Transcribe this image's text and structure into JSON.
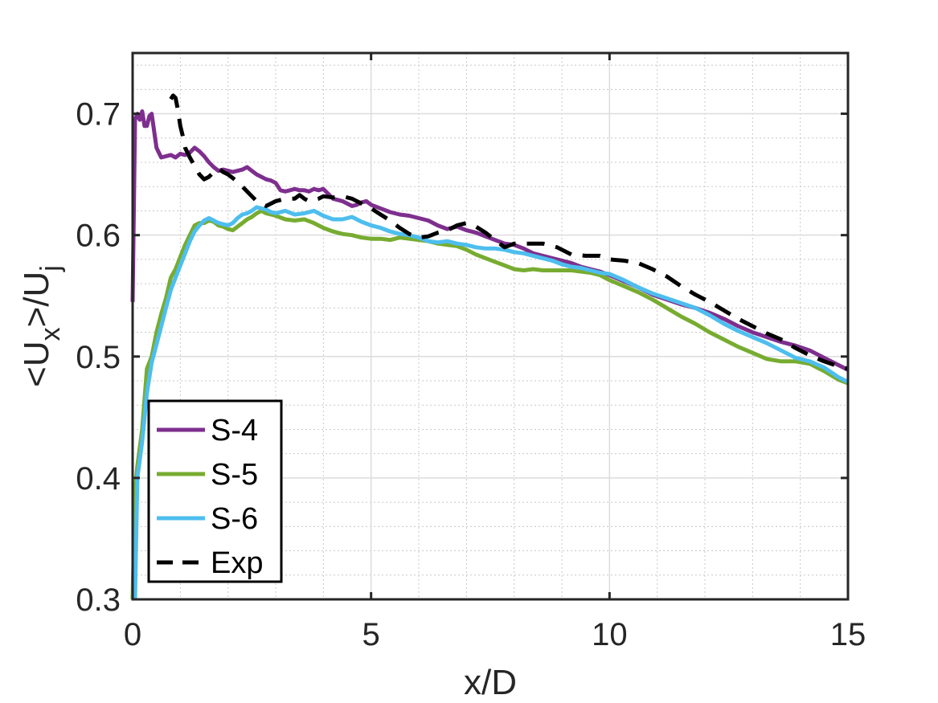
{
  "chart_data": {
    "type": "line",
    "xlabel": "x/D",
    "ylabel": {
      "base": "<U",
      "sub1": "x",
      "mid": ">/U",
      "sub2": "j"
    },
    "xlim": [
      0,
      15
    ],
    "ylim": [
      0.3,
      0.75
    ],
    "xticks": [
      0,
      5,
      10,
      15
    ],
    "yticks": [
      0.3,
      0.4,
      0.5,
      0.6,
      0.7
    ],
    "xtick_labels": [
      "0",
      "5",
      "10",
      "15"
    ],
    "ytick_labels": [
      "0.3",
      "0.4",
      "0.5",
      "0.6",
      "0.7"
    ],
    "grid": true,
    "minor_grid": true,
    "legend_position": "bottom-left",
    "series": [
      {
        "name": "S-4",
        "color": "#7E2F8E",
        "style": "solid",
        "x": [
          0,
          0.05,
          0.1,
          0.15,
          0.2,
          0.25,
          0.3,
          0.35,
          0.4,
          0.5,
          0.55,
          0.6,
          0.7,
          0.8,
          0.9,
          1.0,
          1.1,
          1.2,
          1.3,
          1.4,
          1.5,
          1.6,
          1.7,
          1.8,
          1.9,
          2.0,
          2.1,
          2.2,
          2.3,
          2.4,
          2.5,
          2.6,
          2.7,
          2.8,
          2.9,
          3.0,
          3.1,
          3.2,
          3.3,
          3.4,
          3.5,
          3.6,
          3.7,
          3.8,
          3.9,
          4.0,
          4.1,
          4.2,
          4.3,
          4.4,
          4.5,
          4.6,
          4.7,
          4.8,
          4.9,
          5.0,
          5.2,
          5.4,
          5.6,
          5.8,
          6.0,
          6.2,
          6.4,
          6.6,
          6.8,
          7.0,
          7.2,
          7.4,
          7.6,
          7.8,
          8.0,
          8.2,
          8.4,
          8.6,
          8.8,
          9.0,
          9.2,
          9.4,
          9.6,
          9.8,
          10.0,
          10.3,
          10.6,
          10.9,
          11.2,
          11.5,
          11.8,
          12.1,
          12.4,
          12.7,
          13.0,
          13.3,
          13.6,
          13.9,
          14.2,
          14.5,
          14.8,
          15.0
        ],
        "y": [
          0.545,
          0.695,
          0.7,
          0.695,
          0.702,
          0.69,
          0.69,
          0.698,
          0.7,
          0.672,
          0.668,
          0.664,
          0.665,
          0.666,
          0.664,
          0.667,
          0.666,
          0.668,
          0.672,
          0.669,
          0.665,
          0.66,
          0.656,
          0.653,
          0.654,
          0.653,
          0.652,
          0.653,
          0.654,
          0.656,
          0.653,
          0.65,
          0.648,
          0.646,
          0.645,
          0.643,
          0.637,
          0.636,
          0.637,
          0.638,
          0.637,
          0.637,
          0.636,
          0.638,
          0.637,
          0.638,
          0.634,
          0.63,
          0.629,
          0.628,
          0.626,
          0.624,
          0.625,
          0.627,
          0.628,
          0.625,
          0.622,
          0.619,
          0.617,
          0.616,
          0.614,
          0.612,
          0.608,
          0.605,
          0.607,
          0.604,
          0.602,
          0.599,
          0.596,
          0.593,
          0.592,
          0.589,
          0.585,
          0.583,
          0.581,
          0.579,
          0.577,
          0.574,
          0.572,
          0.57,
          0.567,
          0.562,
          0.557,
          0.551,
          0.547,
          0.543,
          0.54,
          0.536,
          0.531,
          0.525,
          0.52,
          0.516,
          0.512,
          0.509,
          0.505,
          0.499,
          0.493,
          0.489
        ]
      },
      {
        "name": "S-5",
        "color": "#77AC30",
        "style": "solid",
        "x": [
          0,
          0.05,
          0.1,
          0.2,
          0.3,
          0.4,
          0.5,
          0.6,
          0.7,
          0.8,
          0.9,
          1.0,
          1.1,
          1.2,
          1.3,
          1.4,
          1.5,
          1.6,
          1.7,
          1.8,
          1.9,
          2.0,
          2.1,
          2.2,
          2.3,
          2.4,
          2.5,
          2.6,
          2.7,
          2.8,
          2.9,
          3.0,
          3.2,
          3.4,
          3.6,
          3.8,
          4.0,
          4.2,
          4.4,
          4.6,
          4.8,
          5.0,
          5.2,
          5.4,
          5.6,
          5.8,
          6.0,
          6.2,
          6.4,
          6.6,
          6.8,
          7.0,
          7.2,
          7.4,
          7.6,
          7.8,
          8.0,
          8.2,
          8.4,
          8.6,
          8.8,
          9.0,
          9.2,
          9.4,
          9.6,
          9.8,
          10.0,
          10.3,
          10.6,
          10.9,
          11.2,
          11.5,
          11.8,
          12.1,
          12.4,
          12.7,
          13.0,
          13.3,
          13.6,
          13.9,
          14.2,
          14.5,
          14.8,
          15.0
        ],
        "y": [
          0.3,
          0.39,
          0.41,
          0.44,
          0.49,
          0.5,
          0.52,
          0.535,
          0.548,
          0.565,
          0.572,
          0.582,
          0.592,
          0.6,
          0.608,
          0.61,
          0.61,
          0.612,
          0.611,
          0.608,
          0.607,
          0.605,
          0.604,
          0.607,
          0.61,
          0.613,
          0.615,
          0.618,
          0.62,
          0.618,
          0.617,
          0.616,
          0.613,
          0.612,
          0.613,
          0.61,
          0.606,
          0.603,
          0.601,
          0.6,
          0.598,
          0.597,
          0.597,
          0.596,
          0.598,
          0.597,
          0.596,
          0.595,
          0.593,
          0.592,
          0.591,
          0.588,
          0.584,
          0.581,
          0.578,
          0.575,
          0.572,
          0.571,
          0.572,
          0.571,
          0.571,
          0.571,
          0.571,
          0.57,
          0.569,
          0.567,
          0.563,
          0.558,
          0.553,
          0.547,
          0.54,
          0.533,
          0.527,
          0.52,
          0.514,
          0.508,
          0.503,
          0.498,
          0.496,
          0.496,
          0.494,
          0.488,
          0.481,
          0.478
        ]
      },
      {
        "name": "S-6",
        "color": "#4DBEEE",
        "style": "solid",
        "x": [
          0.05,
          0.08,
          0.1,
          0.2,
          0.3,
          0.4,
          0.5,
          0.6,
          0.7,
          0.8,
          0.9,
          1.0,
          1.1,
          1.2,
          1.3,
          1.4,
          1.5,
          1.6,
          1.7,
          1.8,
          1.9,
          2.0,
          2.1,
          2.2,
          2.3,
          2.4,
          2.5,
          2.6,
          2.7,
          2.8,
          2.9,
          3.0,
          3.2,
          3.4,
          3.6,
          3.8,
          4.0,
          4.2,
          4.4,
          4.6,
          4.8,
          5.0,
          5.2,
          5.4,
          5.6,
          5.8,
          6.0,
          6.2,
          6.4,
          6.6,
          6.8,
          7.0,
          7.2,
          7.4,
          7.6,
          7.8,
          8.0,
          8.2,
          8.4,
          8.6,
          8.8,
          9.0,
          9.2,
          9.4,
          9.6,
          9.8,
          10.0,
          10.3,
          10.6,
          10.9,
          11.2,
          11.5,
          11.8,
          12.1,
          12.4,
          12.7,
          13.0,
          13.3,
          13.6,
          13.9,
          14.2,
          14.5,
          14.8,
          15.0
        ],
        "y": [
          0.3,
          0.36,
          0.4,
          0.43,
          0.47,
          0.495,
          0.51,
          0.525,
          0.54,
          0.555,
          0.565,
          0.575,
          0.585,
          0.595,
          0.603,
          0.608,
          0.612,
          0.614,
          0.612,
          0.61,
          0.609,
          0.608,
          0.61,
          0.614,
          0.617,
          0.618,
          0.62,
          0.623,
          0.622,
          0.621,
          0.619,
          0.618,
          0.62,
          0.617,
          0.618,
          0.62,
          0.616,
          0.613,
          0.613,
          0.615,
          0.611,
          0.608,
          0.606,
          0.603,
          0.601,
          0.6,
          0.598,
          0.595,
          0.594,
          0.595,
          0.593,
          0.592,
          0.59,
          0.589,
          0.589,
          0.588,
          0.586,
          0.585,
          0.583,
          0.581,
          0.579,
          0.576,
          0.574,
          0.573,
          0.571,
          0.569,
          0.568,
          0.563,
          0.557,
          0.552,
          0.548,
          0.544,
          0.54,
          0.534,
          0.527,
          0.521,
          0.516,
          0.511,
          0.505,
          0.499,
          0.496,
          0.491,
          0.483,
          0.479
        ]
      },
      {
        "name": "Exp",
        "color": "#000000",
        "style": "dashed",
        "x": [
          0.8,
          0.85,
          0.9,
          0.95,
          1.0,
          1.05,
          1.1,
          1.2,
          1.3,
          1.4,
          1.5,
          1.6,
          1.7,
          1.8,
          1.9,
          2.0,
          2.1,
          2.2,
          2.3,
          2.4,
          2.5,
          2.6,
          2.7,
          2.8,
          2.9,
          3.0,
          3.2,
          3.4,
          3.5,
          3.6,
          3.7,
          3.8,
          3.9,
          4.0,
          4.2,
          4.4,
          4.6,
          4.8,
          5.0,
          5.2,
          5.4,
          5.6,
          5.8,
          6.0,
          6.2,
          6.4,
          6.6,
          6.8,
          7.0,
          7.2,
          7.4,
          7.6,
          7.8,
          8.0,
          8.3,
          8.6,
          8.9,
          9.2,
          9.5,
          9.8,
          10.0,
          10.3,
          10.6,
          10.9,
          11.2,
          11.5,
          11.8,
          12.1,
          12.4,
          12.7,
          13.0,
          13.3,
          13.6,
          13.9,
          14.2,
          14.5,
          14.8,
          15.0
        ],
        "y": [
          0.712,
          0.715,
          0.713,
          0.703,
          0.69,
          0.682,
          0.672,
          0.664,
          0.657,
          0.65,
          0.646,
          0.648,
          0.652,
          0.655,
          0.652,
          0.65,
          0.647,
          0.644,
          0.64,
          0.636,
          0.632,
          0.628,
          0.626,
          0.624,
          0.626,
          0.628,
          0.63,
          0.63,
          0.633,
          0.63,
          0.628,
          0.629,
          0.63,
          0.632,
          0.631,
          0.632,
          0.63,
          0.626,
          0.622,
          0.617,
          0.612,
          0.606,
          0.601,
          0.598,
          0.599,
          0.602,
          0.604,
          0.608,
          0.61,
          0.607,
          0.602,
          0.596,
          0.59,
          0.593,
          0.593,
          0.593,
          0.59,
          0.584,
          0.583,
          0.583,
          0.58,
          0.579,
          0.577,
          0.572,
          0.566,
          0.558,
          0.551,
          0.545,
          0.538,
          0.531,
          0.525,
          0.519,
          0.514,
          0.507,
          0.501,
          0.496,
          0.492,
          0.49
        ]
      }
    ]
  }
}
